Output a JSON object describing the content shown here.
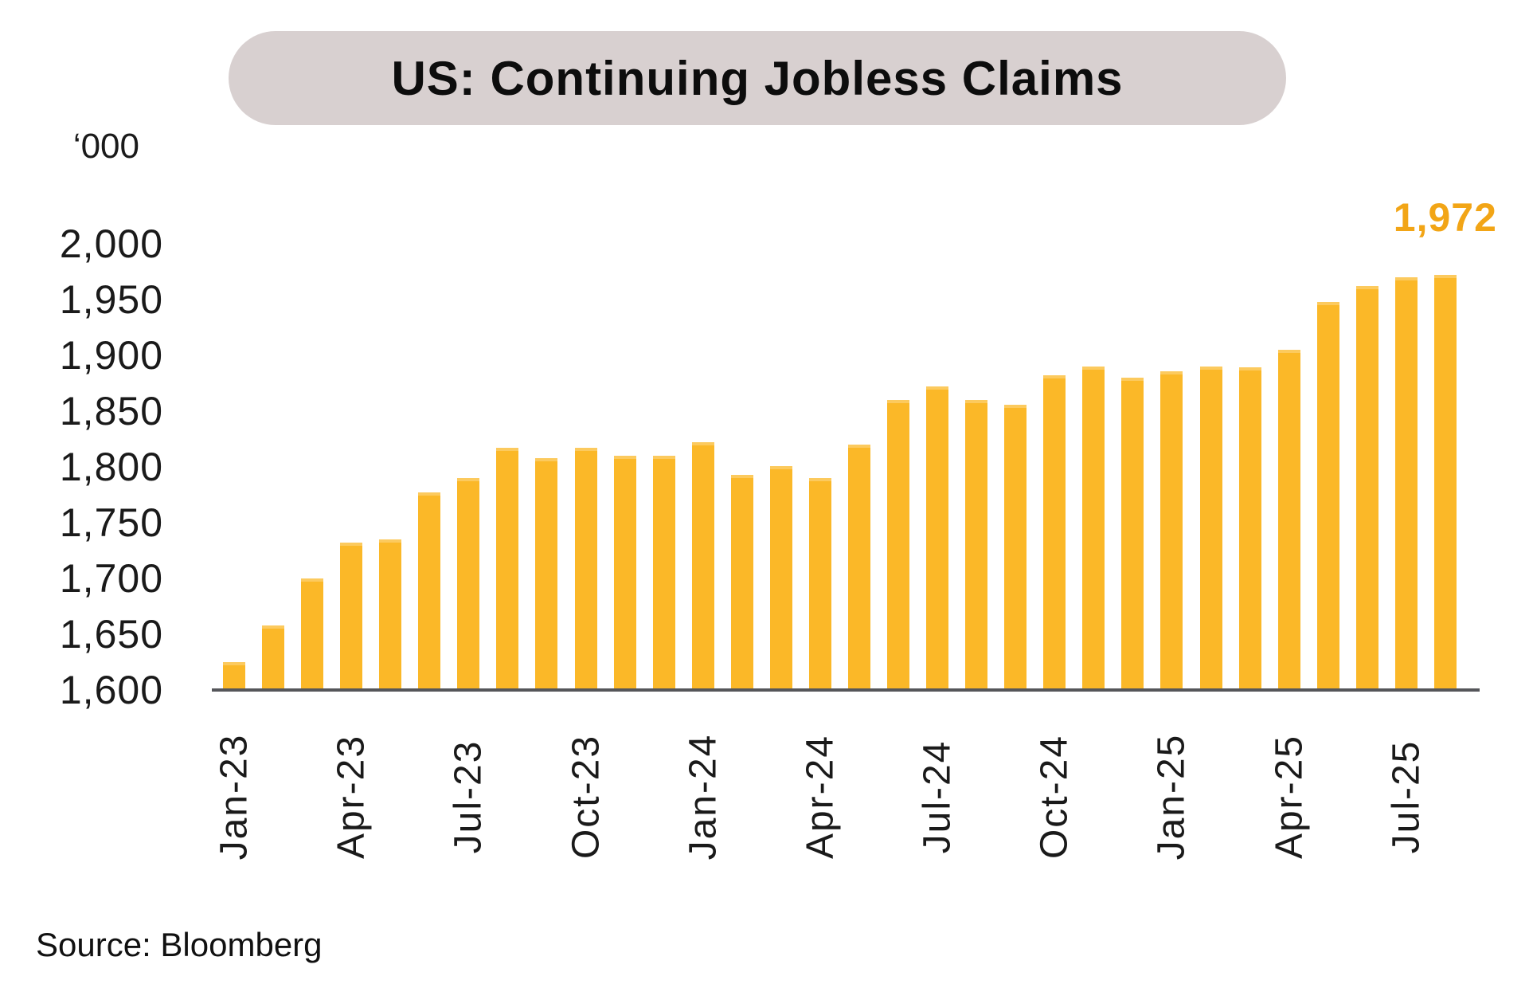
{
  "page": {
    "background": "#ffffff"
  },
  "header": {
    "title": "US: Continuing Jobless Claims"
  },
  "source_note": "Source: Bloomberg",
  "colors": {
    "title_pill_bg": "#d8d0d0",
    "bar": "#fbb828",
    "axis": "#55565a",
    "annotation": "#f2a516",
    "text": "#1a1a1a"
  },
  "chart_data": {
    "type": "bar",
    "title": "US: Continuing Jobless Claims",
    "unit_label": "‘000",
    "xlabel": "",
    "ylabel": "‘000",
    "ylim": [
      1600,
      2000
    ],
    "ytick_step": 50,
    "grid": false,
    "legend": "none",
    "x": [
      "Jan-23",
      "Feb-23",
      "Mar-23",
      "Apr-23",
      "May-23",
      "Jun-23",
      "Jul-23",
      "Aug-23",
      "Sep-23",
      "Oct-23",
      "Nov-23",
      "Dec-23",
      "Jan-24",
      "Feb-24",
      "Mar-24",
      "Apr-24",
      "May-24",
      "Jun-24",
      "Jul-24",
      "Aug-24",
      "Sep-24",
      "Oct-24",
      "Nov-24",
      "Dec-24",
      "Jan-25",
      "Feb-25",
      "Mar-25",
      "Apr-25",
      "May-25",
      "Jun-25",
      "Jul-25",
      "Aug-25"
    ],
    "values": [
      1625,
      1658,
      1700,
      1732,
      1735,
      1777,
      1790,
      1817,
      1808,
      1817,
      1810,
      1810,
      1822,
      1793,
      1801,
      1790,
      1820,
      1860,
      1872,
      1860,
      1856,
      1882,
      1890,
      1880,
      1886,
      1890,
      1889,
      1905,
      1948,
      1962,
      1970,
      1972
    ],
    "yticks": [
      {
        "label": "2,000",
        "value": 2000
      },
      {
        "label": "1,950",
        "value": 1950
      },
      {
        "label": "1,900",
        "value": 1900
      },
      {
        "label": "1,850",
        "value": 1850
      },
      {
        "label": "1,800",
        "value": 1800
      },
      {
        "label": "1,750",
        "value": 1750
      },
      {
        "label": "1,700",
        "value": 1700
      },
      {
        "label": "1,650",
        "value": 1650
      },
      {
        "label": "1,600",
        "value": 1600
      }
    ],
    "xticks": [
      {
        "label": "Jan-23",
        "index": 0
      },
      {
        "label": "Apr-23",
        "index": 3
      },
      {
        "label": "Jul-23",
        "index": 6
      },
      {
        "label": "Oct-23",
        "index": 9
      },
      {
        "label": "Jan-24",
        "index": 12
      },
      {
        "label": "Apr-24",
        "index": 15
      },
      {
        "label": "Jul-24",
        "index": 18
      },
      {
        "label": "Oct-24",
        "index": 21
      },
      {
        "label": "Jan-25",
        "index": 24
      },
      {
        "label": "Apr-25",
        "index": 27
      },
      {
        "label": "Jul-25",
        "index": 30
      }
    ],
    "annotation": {
      "text": "1,972",
      "bar_index": 31
    }
  }
}
